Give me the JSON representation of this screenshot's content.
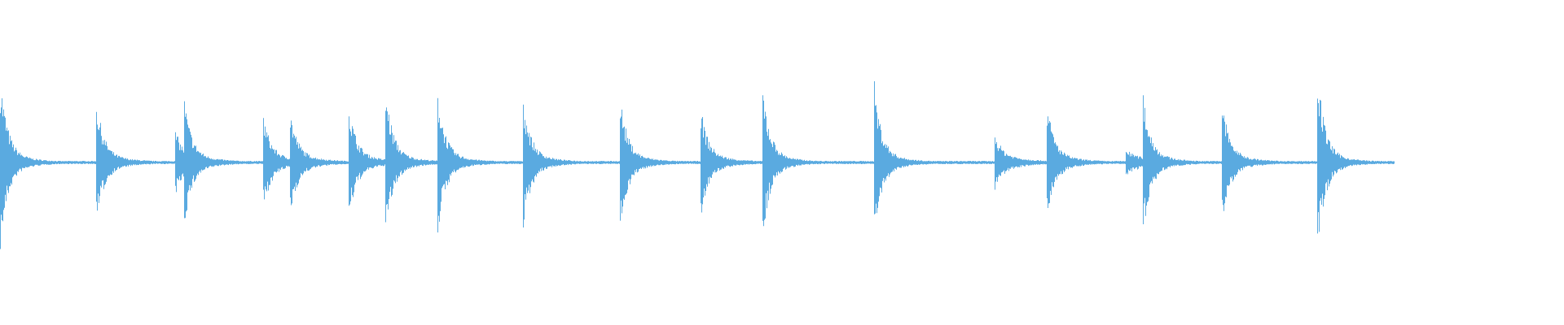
{
  "waveform": {
    "color": "#5aaae0",
    "background": "#ffffff"
  }
}
